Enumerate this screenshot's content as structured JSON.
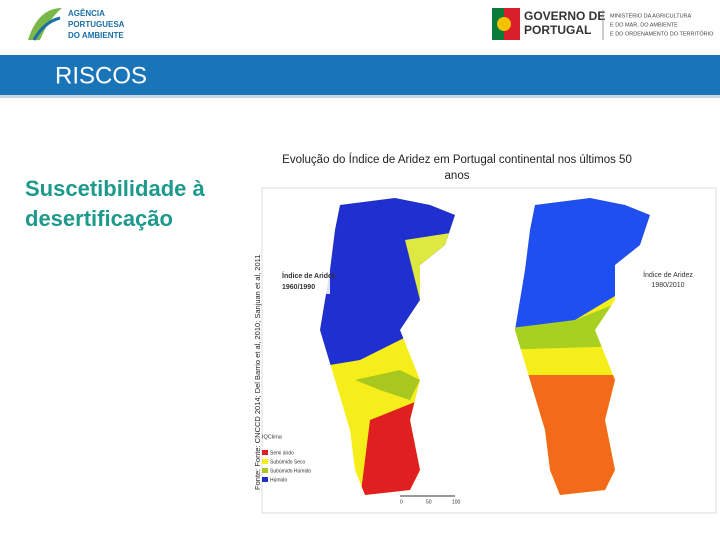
{
  "header": {
    "agency": [
      "AGÊNCIA",
      "PORTUGUESA",
      "DO AMBIENTE"
    ],
    "government": [
      "GOVERNO DE",
      "PORTUGAL"
    ],
    "ministry": [
      "MINISTÉRIO DA AGRICULTURA",
      "E DO MAR, DO AMBIENTE",
      "E DO ORDENAMENTO DO TERRITÓRIO"
    ]
  },
  "banner": "RISCOS",
  "side_title": [
    "Suscetibilidade à",
    "desertificação"
  ],
  "source": "Fonte: Fonte: CNCCD 2014; Del Barrio et al, 2010; Sanjuan et al, 2011",
  "figure": {
    "title": [
      "Evolução do Índice de Aridez em Portugal continental nos últimos 50",
      "anos"
    ],
    "maps": [
      {
        "label": [
          "Índice de Aridez",
          "1960/1990"
        ]
      },
      {
        "label": [
          "Índice de Aridez",
          "1980/2010"
        ]
      }
    ],
    "legend": {
      "title": "IQClima",
      "items": [
        "Semi árido",
        "Subúmido Seco",
        "Subúmido Húmido",
        "Húmido"
      ]
    },
    "scale": [
      "0",
      "50",
      "100"
    ]
  }
}
